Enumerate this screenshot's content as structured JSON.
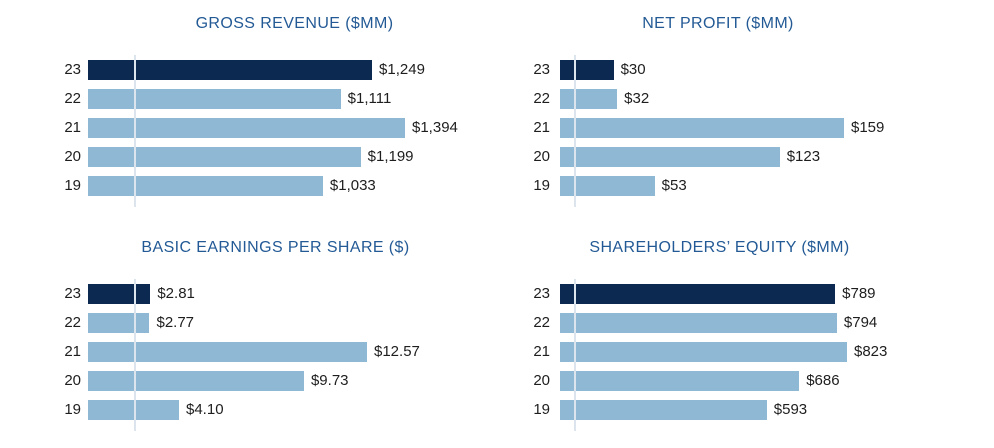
{
  "colors": {
    "background": "#ffffff",
    "highlight_bar": "#0c2a51",
    "bar": "#8fb8d5",
    "title": "#235a95",
    "label": "#1e1e1e",
    "axis_line": "#dce5ed"
  },
  "chart_data": [
    {
      "type": "bar",
      "orientation": "horizontal",
      "title": "GROSS REVENUE ($MM)",
      "categories": [
        "23",
        "22",
        "21",
        "20",
        "19"
      ],
      "values": [
        1249,
        1111,
        1394,
        1199,
        1033
      ],
      "value_labels": [
        "$1,249",
        "$1,111",
        "$1,394",
        "$1,199",
        "$1,033"
      ],
      "xlim": [
        0,
        1394
      ],
      "highlight_category": "23",
      "grid": false,
      "legend": false
    },
    {
      "type": "bar",
      "orientation": "horizontal",
      "title": "NET PROFIT ($MM)",
      "categories": [
        "23",
        "22",
        "21",
        "20",
        "19"
      ],
      "values": [
        30,
        32,
        159,
        123,
        53
      ],
      "value_labels": [
        "$30",
        "$32",
        "$159",
        "$123",
        "$53"
      ],
      "xlim": [
        0,
        159
      ],
      "highlight_category": "23",
      "grid": false,
      "legend": false
    },
    {
      "type": "bar",
      "orientation": "horizontal",
      "title": "BASIC EARNINGS PER SHARE ($)",
      "categories": [
        "23",
        "22",
        "21",
        "20",
        "19"
      ],
      "values": [
        2.81,
        2.77,
        12.57,
        9.73,
        4.1
      ],
      "value_labels": [
        "$2.81",
        "$2.77",
        "$12.57",
        "$9.73",
        "$4.10"
      ],
      "xlim": [
        0,
        12.57
      ],
      "highlight_category": "23",
      "grid": false,
      "legend": false
    },
    {
      "type": "bar",
      "orientation": "horizontal",
      "title": "SHAREHOLDERS’ EQUITY ($MM)",
      "categories": [
        "23",
        "22",
        "21",
        "20",
        "19"
      ],
      "values": [
        789,
        794,
        823,
        686,
        593
      ],
      "value_labels": [
        "$789",
        "$794",
        "$823",
        "$686",
        "$593"
      ],
      "xlim": [
        0,
        823
      ],
      "highlight_category": "23",
      "grid": false,
      "legend": false
    }
  ]
}
